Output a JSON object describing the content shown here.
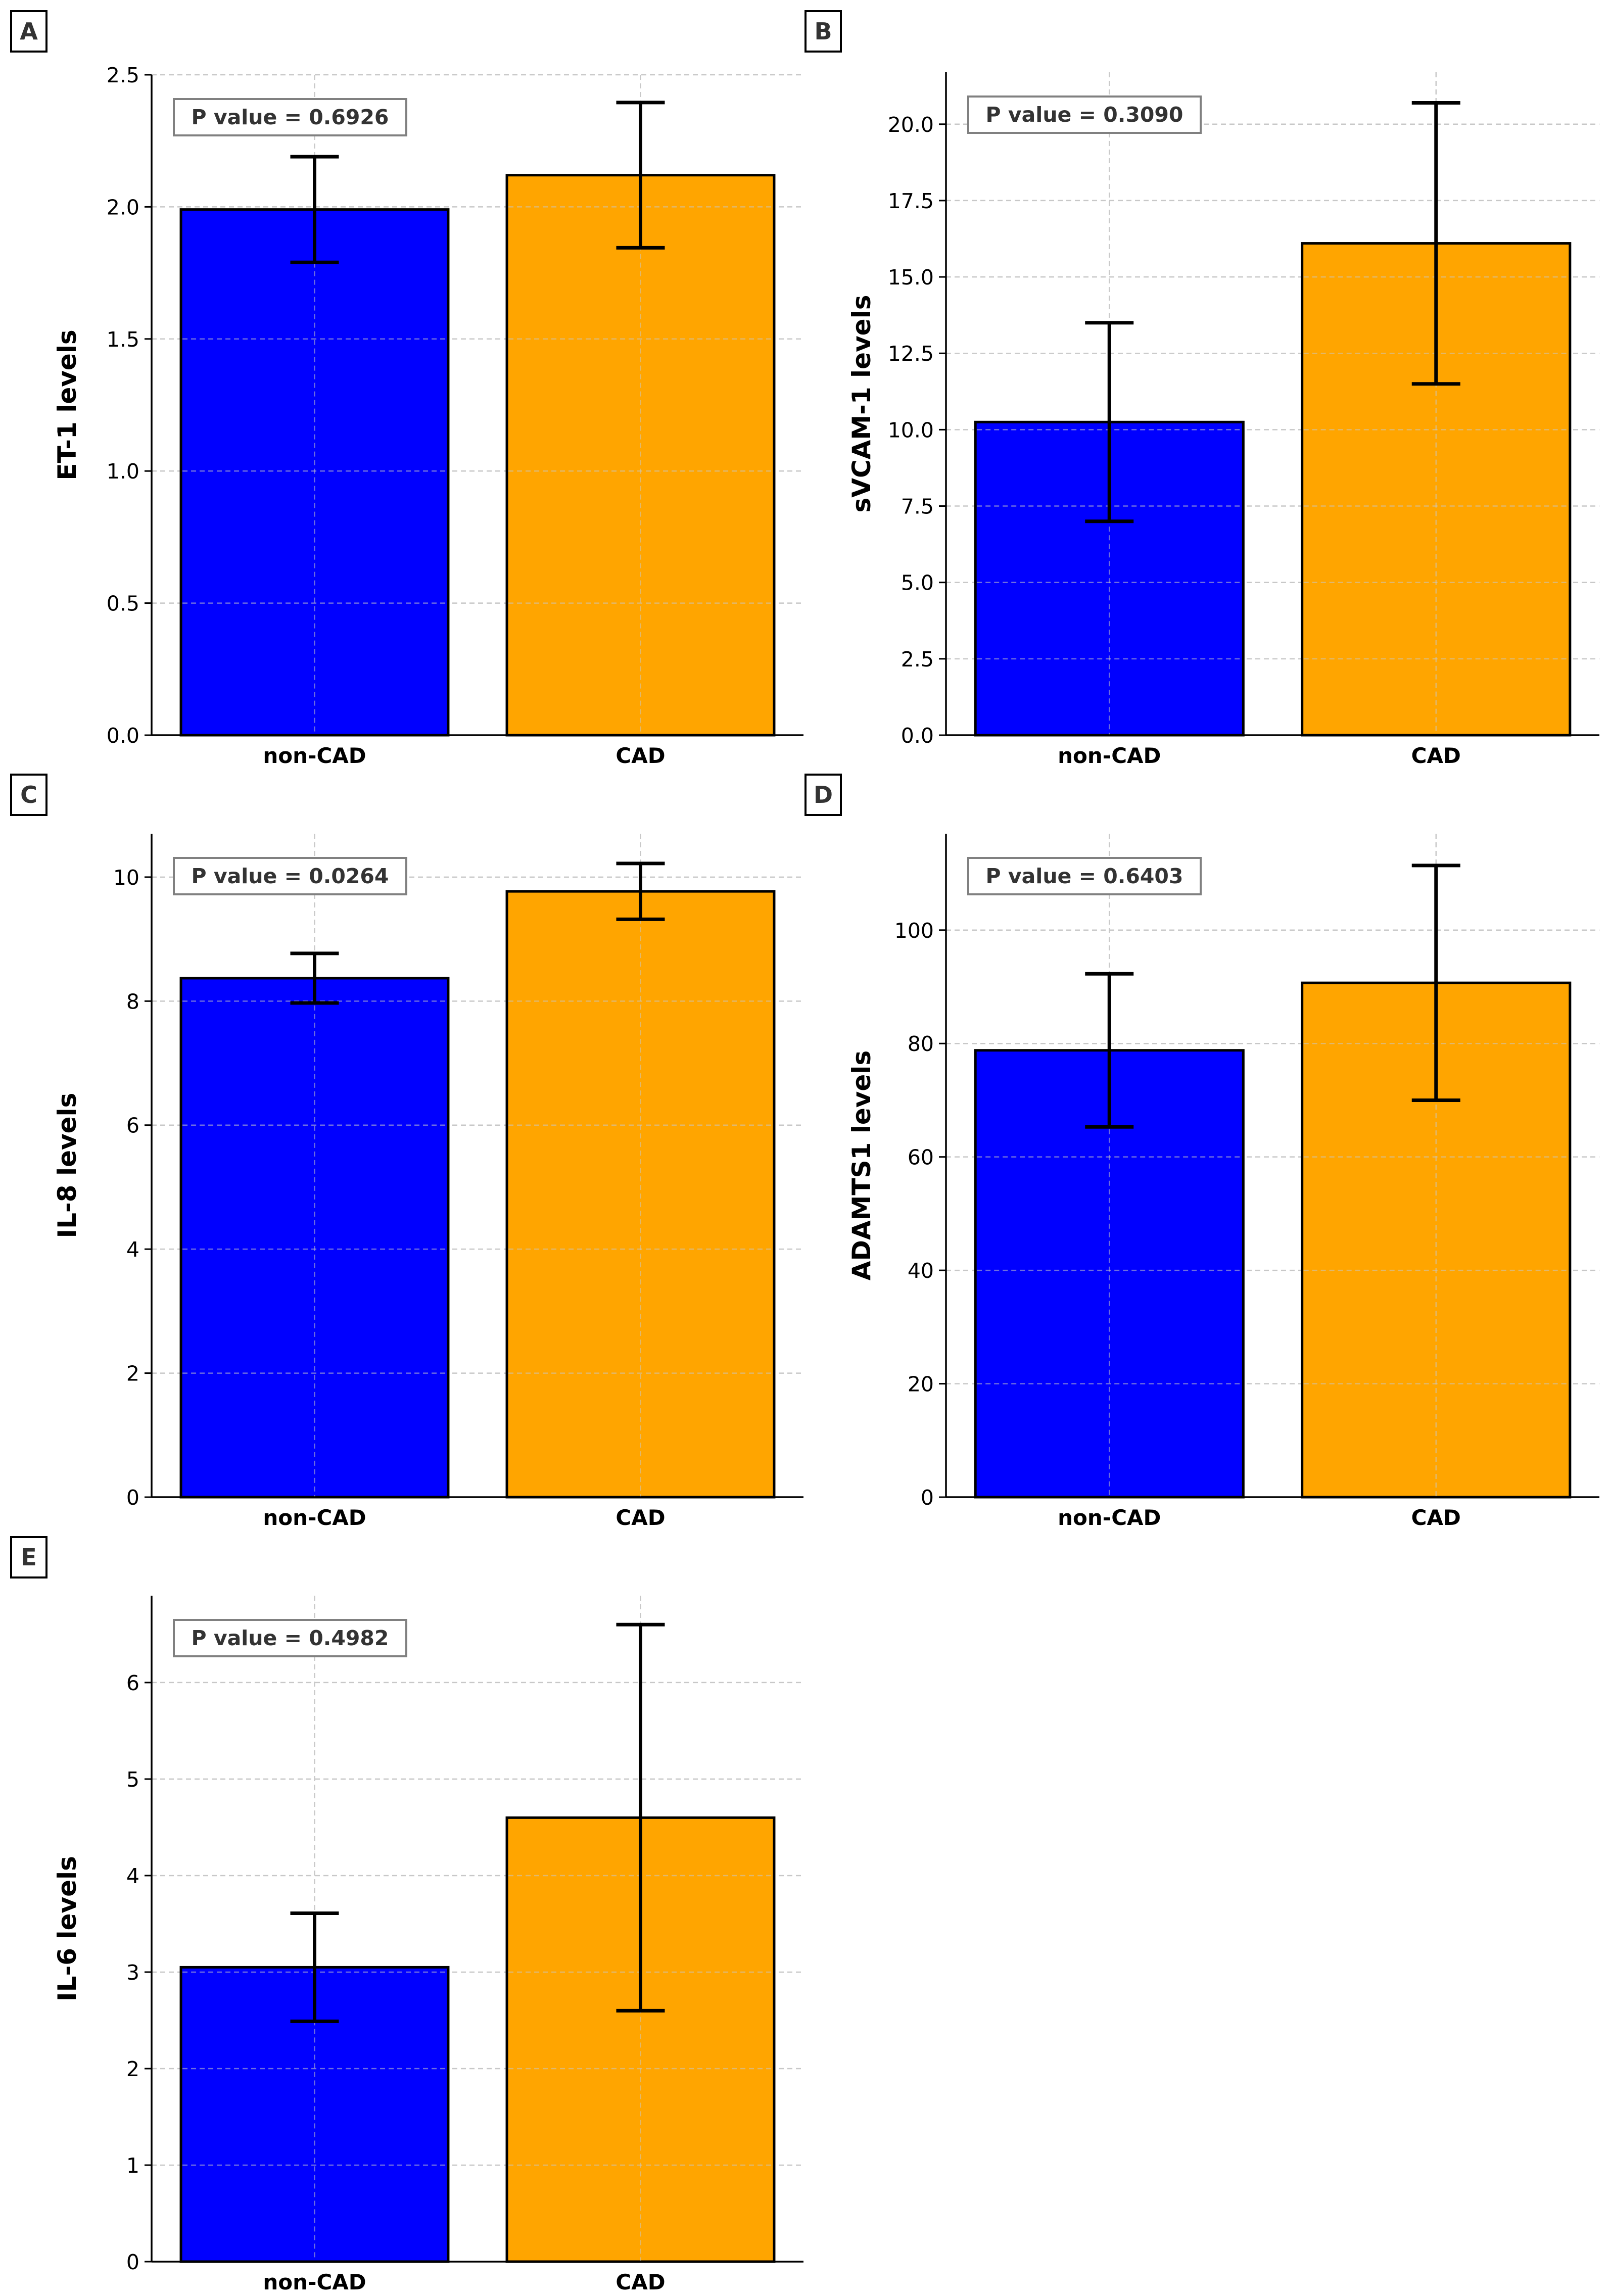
{
  "colors": {
    "non_cad": "#0000ff",
    "cad": "#ffa500",
    "grid": "#c8c8c8",
    "text": "#000000",
    "stat_text": "#333333"
  },
  "chart_data": [
    {
      "panel": "A",
      "type": "bar",
      "categories": [
        "non-CAD",
        "CAD"
      ],
      "values": [
        1.99,
        2.12
      ],
      "errors": [
        0.2,
        0.275
      ],
      "ylabel": "ET-1 levels",
      "ylim": [
        0,
        2.5
      ],
      "yticks": [
        0.0,
        0.5,
        1.0,
        1.5,
        2.0,
        2.5
      ],
      "tick_decimals": 1,
      "annotation": "P value = 0.6926",
      "grid": true
    },
    {
      "panel": "B",
      "type": "bar",
      "categories": [
        "non-CAD",
        "CAD"
      ],
      "values": [
        10.25,
        16.1
      ],
      "errors": [
        3.25,
        4.6
      ],
      "ylabel": "sVCAM-1 levels",
      "ylim": [
        0,
        21.7
      ],
      "yticks": [
        0.0,
        2.5,
        5.0,
        7.5,
        10.0,
        12.5,
        15.0,
        17.5,
        20.0
      ],
      "tick_decimals": 1,
      "annotation": "P value = 0.3090",
      "grid": true
    },
    {
      "panel": "C",
      "type": "bar",
      "categories": [
        "non-CAD",
        "CAD"
      ],
      "values": [
        8.37,
        9.77
      ],
      "errors": [
        0.4,
        0.45
      ],
      "ylabel": "IL-8 levels",
      "ylim": [
        0,
        10.7
      ],
      "yticks": [
        0,
        2,
        4,
        6,
        8,
        10
      ],
      "tick_decimals": 0,
      "annotation": "P value = 0.0264",
      "grid": true
    },
    {
      "panel": "D",
      "type": "bar",
      "categories": [
        "non-CAD",
        "CAD"
      ],
      "values": [
        78.8,
        90.7
      ],
      "errors": [
        13.5,
        20.7
      ],
      "ylabel": "ADAMTS1 levels",
      "ylim": [
        0,
        117
      ],
      "yticks": [
        0,
        20,
        40,
        60,
        80,
        100
      ],
      "tick_decimals": 0,
      "annotation": "P value = 0.6403",
      "grid": true
    },
    {
      "panel": "E",
      "type": "bar",
      "categories": [
        "non-CAD",
        "CAD"
      ],
      "values": [
        3.05,
        4.6
      ],
      "errors": [
        0.56,
        2.0
      ],
      "ylabel": "IL-6 levels",
      "ylim": [
        0,
        6.9
      ],
      "yticks": [
        0,
        1,
        2,
        3,
        4,
        5,
        6
      ],
      "tick_decimals": 0,
      "annotation": "P value = 0.4982",
      "grid": true
    }
  ]
}
